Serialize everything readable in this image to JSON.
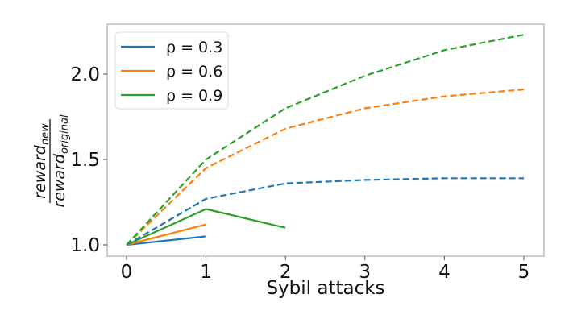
{
  "chart_data": {
    "type": "line",
    "title": "",
    "xlabel": "Sybil attacks",
    "ylabel": {
      "numerator": "reward",
      "numerator_sub": "new",
      "denominator": "reward",
      "denominator_sub": "original"
    },
    "xlim": [
      -0.25,
      5.25
    ],
    "ylim": [
      0.93,
      2.29
    ],
    "x_ticks": [
      0,
      1,
      2,
      3,
      4,
      5
    ],
    "x_tick_labels": [
      "0",
      "1",
      "2",
      "3",
      "4",
      "5"
    ],
    "y_ticks": [
      1.0,
      1.5,
      2.0
    ],
    "y_tick_labels": [
      "1.0",
      "1.5",
      "2.0"
    ],
    "grid": false,
    "legend_position": "upper left",
    "legend": [
      {
        "label": "ρ = 0.3",
        "color": "#1f77b4"
      },
      {
        "label": "ρ = 0.6",
        "color": "#ff7f0e"
      },
      {
        "label": "ρ = 0.9",
        "color": "#2ca02c"
      }
    ],
    "series": [
      {
        "name": "ρ = 0.3 (solid)",
        "color": "#1f77b4",
        "style": "solid",
        "x": [
          0,
          1
        ],
        "values": [
          1.0,
          1.05
        ]
      },
      {
        "name": "ρ = 0.6 (solid)",
        "color": "#ff7f0e",
        "style": "solid",
        "x": [
          0,
          1
        ],
        "values": [
          1.0,
          1.12
        ]
      },
      {
        "name": "ρ = 0.9 (solid)",
        "color": "#2ca02c",
        "style": "solid",
        "x": [
          0,
          1,
          2
        ],
        "values": [
          1.0,
          1.21,
          1.1
        ]
      },
      {
        "name": "ρ = 0.3 (dashed)",
        "color": "#1f77b4",
        "style": "dashed",
        "x": [
          0,
          1,
          2,
          3,
          4,
          5
        ],
        "values": [
          1.0,
          1.27,
          1.36,
          1.38,
          1.39,
          1.39
        ]
      },
      {
        "name": "ρ = 0.6 (dashed)",
        "color": "#ff7f0e",
        "style": "dashed",
        "x": [
          0,
          1,
          2,
          3,
          4,
          5
        ],
        "values": [
          1.0,
          1.45,
          1.68,
          1.8,
          1.87,
          1.91
        ]
      },
      {
        "name": "ρ = 0.9 (dashed)",
        "color": "#2ca02c",
        "style": "dashed",
        "x": [
          0,
          1,
          2,
          3,
          4,
          5
        ],
        "values": [
          1.0,
          1.5,
          1.8,
          1.99,
          2.14,
          2.23
        ]
      }
    ]
  }
}
